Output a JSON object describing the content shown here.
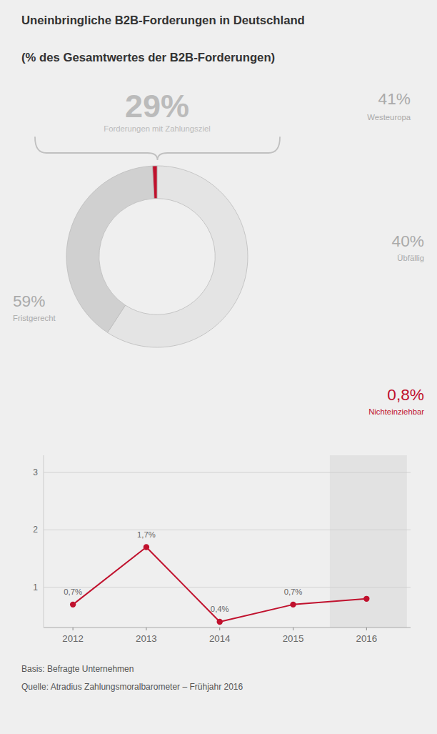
{
  "chart_data": [
    {
      "type": "donut",
      "title": "Uneinbringliche B2B-Forderungen in Deutschland",
      "subtitle": "(% des Gesamtwertes der B2B-Forderungen)",
      "categories": [
        "Fristgerecht",
        "Übfällig",
        "Nichteinziehbar"
      ],
      "values": [
        59.2,
        40.0,
        0.8
      ],
      "value_labels": [
        "59%",
        "40%",
        "0,8%"
      ],
      "colors": [
        "#e4e4e4",
        "#d0d0d0",
        "#c0112d"
      ],
      "data_labels": true,
      "annotations": [
        {
          "text": "29%"
        },
        {
          "text": "Forderungen mit Zahlungsziel"
        },
        {
          "text": "41%"
        },
        {
          "text": "Westeuropa"
        }
      ]
    },
    {
      "type": "line",
      "x": [
        2012,
        2013,
        2014,
        2015,
        2016
      ],
      "values": [
        0.7,
        1.7,
        0.4,
        0.7,
        0.8
      ],
      "value_labels": [
        "0,7%",
        "1,7%",
        "0,4%",
        "0,7%",
        null
      ],
      "color": "#c0112d",
      "marker": "circle",
      "xlim": [
        2011.6,
        2016.6
      ],
      "ylim": [
        0.3,
        3.3
      ],
      "xticks": [
        2012,
        2013,
        2014,
        2015,
        2016
      ],
      "yticks": [
        1,
        2,
        3
      ],
      "grid": true,
      "data_labels": true,
      "annotations": [
        {
          "text": "Basis: Befragte Unternehmen"
        },
        {
          "text": "Quelle: Atradius Zahlungsmoralbarometer – Frühjahr 2016"
        }
      ]
    }
  ]
}
